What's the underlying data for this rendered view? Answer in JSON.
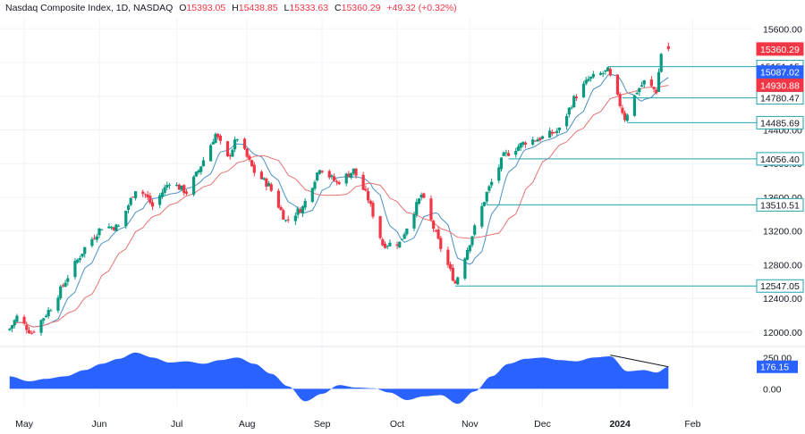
{
  "header": {
    "title": "Nasdaq Composite Index, 1D, NASDAQ",
    "o_label": "O",
    "o_value": "15393.05",
    "h_label": "H",
    "h_value": "15438.85",
    "l_label": "L",
    "l_value": "15333.63",
    "c_label": "C",
    "c_value": "15360.29",
    "change": "+49.32 (+0.32%)"
  },
  "colors": {
    "up": "#089981",
    "down": "#f23645",
    "ma_fast": "#4a90c6",
    "ma_slow": "#e57373",
    "level_line": "#22a3b0",
    "osc_fill": "#2962ff",
    "label_blue": "#2962ff",
    "label_red": "#f23645",
    "label_teal_border": "#22a3b0",
    "grid": "#f0f3fa"
  },
  "chart_data": [
    {
      "type": "candlestick",
      "title": "Nasdaq Composite Index, 1D, NASDAQ",
      "x_ticks": [
        "May",
        "Jun",
        "Jul",
        "Aug",
        "Sep",
        "Oct",
        "Nov",
        "Dec",
        "2024",
        "Feb"
      ],
      "y_ticks": [
        "15600.00",
        "15200.00",
        "14800.00",
        "14400.00",
        "14000.00",
        "13600.00",
        "13200.00",
        "12800.00",
        "12400.00",
        "12000.00"
      ],
      "ylim": [
        11850,
        15730
      ],
      "series_path": [
        [
          "2023-04-25",
          12040
        ],
        [
          "2023-04-28",
          12180
        ],
        [
          "2023-05-04",
          11990
        ],
        [
          "2023-05-12",
          12290
        ],
        [
          "2023-05-19",
          12660
        ],
        [
          "2023-05-26",
          13000
        ],
        [
          "2023-06-02",
          13250
        ],
        [
          "2023-06-09",
          13250
        ],
        [
          "2023-06-16",
          13700
        ],
        [
          "2023-06-20",
          13630
        ],
        [
          "2023-06-23",
          13490
        ],
        [
          "2023-06-30",
          13790
        ],
        [
          "2023-07-07",
          13660
        ],
        [
          "2023-07-12",
          13920
        ],
        [
          "2023-07-19",
          14350
        ],
        [
          "2023-07-24",
          14060
        ],
        [
          "2023-07-28",
          14310
        ],
        [
          "2023-08-04",
          13900
        ],
        [
          "2023-08-10",
          13740
        ],
        [
          "2023-08-17",
          13320
        ],
        [
          "2023-08-24",
          13480
        ],
        [
          "2023-08-31",
          13960
        ],
        [
          "2023-09-07",
          13770
        ],
        [
          "2023-09-14",
          13920
        ],
        [
          "2023-09-20",
          13580
        ],
        [
          "2023-09-26",
          13040
        ],
        [
          "2023-10-03",
          13060
        ],
        [
          "2023-10-12",
          13630
        ],
        [
          "2023-10-20",
          13000
        ],
        [
          "2023-10-26",
          12580
        ],
        [
          "2023-11-01",
          13070
        ],
        [
          "2023-11-08",
          13650
        ],
        [
          "2023-11-15",
          14090
        ],
        [
          "2023-11-24",
          14260
        ],
        [
          "2023-12-01",
          14310
        ],
        [
          "2023-12-08",
          14400
        ],
        [
          "2023-12-14",
          14770
        ],
        [
          "2023-12-20",
          15000
        ],
        [
          "2023-12-28",
          15100
        ],
        [
          "2024-01-04",
          14540
        ],
        [
          "2024-01-09",
          14860
        ],
        [
          "2024-01-12",
          14970
        ],
        [
          "2024-01-17",
          14860
        ],
        [
          "2024-01-19",
          15310
        ],
        [
          "2024-01-22",
          15360
        ]
      ],
      "last_candle": {
        "date": "2024-01-22",
        "open": 15393.05,
        "high": 15438.85,
        "low": 15333.63,
        "close": 15360.29
      },
      "series": [
        {
          "values": [
            15087.02
          ]
        },
        {
          "values": [
            14930.88
          ]
        }
      ],
      "levels": [
        {
          "label": "15151.15",
          "value": 15151.15,
          "start": "2023-12-28"
        },
        {
          "label": "14780.47",
          "value": 14780.47,
          "start": "2024-01-03"
        },
        {
          "label": "14485.69",
          "value": 14485.69,
          "start": "2024-01-05"
        },
        {
          "label": "14056.40",
          "value": 14056.4,
          "start": "2023-11-17"
        },
        {
          "label": "13510.51",
          "value": 13510.51,
          "start": "2023-11-08"
        },
        {
          "label": "12547.05",
          "value": 12547.05,
          "start": "2023-10-26"
        }
      ],
      "price_labels": [
        {
          "label": "15360.29",
          "value": 15360.29,
          "style": "red"
        },
        {
          "label": "15087.02",
          "value": 15087.02,
          "style": "blue"
        },
        {
          "label": "14930.88",
          "value": 14930.88,
          "style": "red"
        }
      ]
    },
    {
      "type": "area",
      "y_ticks": [
        "250.00",
        "0.00"
      ],
      "ylim": [
        -140,
        310
      ],
      "values_path": [
        [
          "2023-04-25",
          100
        ],
        [
          "2023-05-03",
          60
        ],
        [
          "2023-05-10",
          80
        ],
        [
          "2023-05-18",
          100
        ],
        [
          "2023-05-26",
          150
        ],
        [
          "2023-06-02",
          200
        ],
        [
          "2023-06-09",
          240
        ],
        [
          "2023-06-16",
          290
        ],
        [
          "2023-06-23",
          250
        ],
        [
          "2023-06-30",
          210
        ],
        [
          "2023-07-07",
          220
        ],
        [
          "2023-07-14",
          200
        ],
        [
          "2023-07-21",
          230
        ],
        [
          "2023-07-28",
          250
        ],
        [
          "2023-08-04",
          200
        ],
        [
          "2023-08-11",
          120
        ],
        [
          "2023-08-18",
          20
        ],
        [
          "2023-08-25",
          -100
        ],
        [
          "2023-09-01",
          -40
        ],
        [
          "2023-09-08",
          30
        ],
        [
          "2023-09-15",
          10
        ],
        [
          "2023-09-22",
          5
        ],
        [
          "2023-09-29",
          -30
        ],
        [
          "2023-10-06",
          -90
        ],
        [
          "2023-10-13",
          -60
        ],
        [
          "2023-10-20",
          -50
        ],
        [
          "2023-10-27",
          -120
        ],
        [
          "2023-11-03",
          -20
        ],
        [
          "2023-11-10",
          100
        ],
        [
          "2023-11-17",
          200
        ],
        [
          "2023-11-24",
          240
        ],
        [
          "2023-12-01",
          250
        ],
        [
          "2023-12-08",
          230
        ],
        [
          "2023-12-15",
          220
        ],
        [
          "2023-12-22",
          250
        ],
        [
          "2023-12-29",
          260
        ],
        [
          "2024-01-05",
          140
        ],
        [
          "2024-01-12",
          150
        ],
        [
          "2024-01-17",
          130
        ],
        [
          "2024-01-22",
          176.15
        ]
      ],
      "current_label": "176.15",
      "trend_line": [
        [
          "2023-12-29",
          270
        ],
        [
          "2024-01-22",
          176.15
        ]
      ]
    }
  ]
}
